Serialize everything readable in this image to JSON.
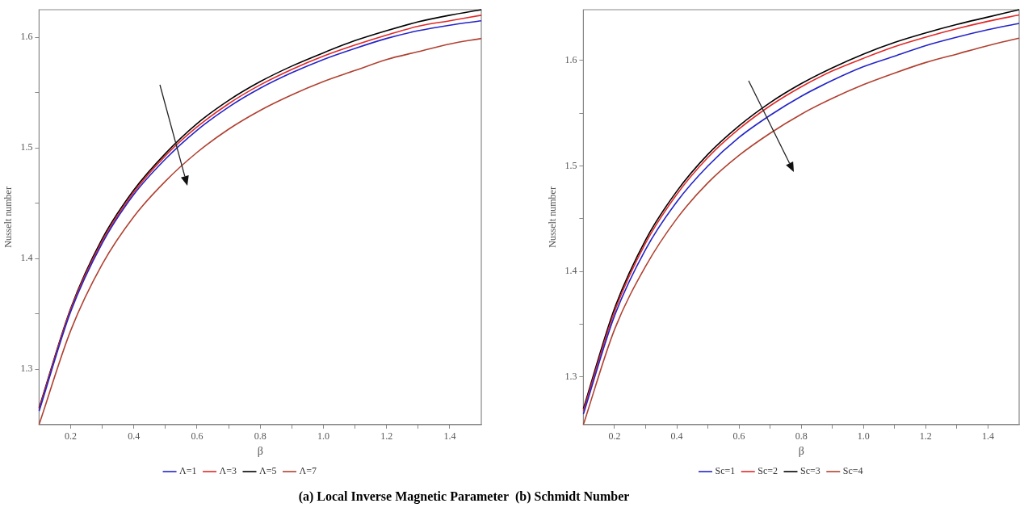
{
  "chart_data": [
    {
      "type": "line",
      "xlabel": "β",
      "ylabel": "Nusselt number",
      "legend": "bottom",
      "marker": "none",
      "line_style": "solid",
      "grid": false,
      "x": [
        0.1,
        0.2,
        0.3,
        0.4,
        0.5,
        0.6,
        0.7,
        0.8,
        0.9,
        1.0,
        1.1,
        1.2,
        1.3,
        1.4,
        1.5
      ],
      "xlim": [
        0.1,
        1.5
      ],
      "ylim": [
        1.25,
        1.625
      ],
      "xticks": [
        {
          "value": 0.2,
          "label": "0.2"
        },
        {
          "value": 0.3,
          "label": null
        },
        {
          "value": 0.4,
          "label": "0.4"
        },
        {
          "value": 0.5,
          "label": null
        },
        {
          "value": 0.6,
          "label": "0.6"
        },
        {
          "value": 0.7,
          "label": null
        },
        {
          "value": 0.8,
          "label": "0.8"
        },
        {
          "value": 0.9,
          "label": null
        },
        {
          "value": 1,
          "label": "1.0"
        },
        {
          "value": 1.1,
          "label": null
        },
        {
          "value": 1.2,
          "label": "1.2"
        },
        {
          "value": 1.3,
          "label": null
        },
        {
          "value": 1.4,
          "label": "1.4"
        }
      ],
      "yticks": [
        1.3,
        {
          "value": 1.35,
          "label": null
        },
        1.4,
        {
          "value": 1.45,
          "label": null
        },
        1.5,
        {
          "value": 1.55,
          "label": null
        },
        1.6
      ],
      "series": [
        {
          "name": "Λ=1",
          "color": "#2323c8",
          "values": [
            1.262,
            1.352,
            1.414,
            1.458,
            1.49,
            1.516,
            1.537,
            1.554,
            1.568,
            1.58,
            1.59,
            1.599,
            1.606,
            1.611,
            1.615
          ]
        },
        {
          "name": "Λ=3",
          "color": "#e02828",
          "values": [
            1.264,
            1.354,
            1.416,
            1.46,
            1.493,
            1.519,
            1.54,
            1.557,
            1.571,
            1.583,
            1.593,
            1.602,
            1.61,
            1.615,
            1.62
          ]
        },
        {
          "name": "Λ=5",
          "color": "#000000",
          "values": [
            1.265,
            1.355,
            1.418,
            1.462,
            1.495,
            1.522,
            1.543,
            1.56,
            1.574,
            1.586,
            1.597,
            1.606,
            1.614,
            1.62,
            1.625
          ]
        },
        {
          "name": "Λ=7",
          "color": "#b04030",
          "values": [
            1.25,
            1.335,
            1.395,
            1.438,
            1.47,
            1.496,
            1.517,
            1.534,
            1.548,
            1.56,
            1.57,
            1.58,
            1.587,
            1.594,
            1.599
          ]
        }
      ],
      "annotations": [
        "(a) Local Inverse Magnetic Parameter"
      ]
    },
    {
      "type": "line",
      "xlabel": "β",
      "ylabel": "Nusselt number",
      "legend": "bottom",
      "marker": "none",
      "line_style": "solid",
      "grid": false,
      "x": [
        0.1,
        0.2,
        0.3,
        0.4,
        0.5,
        0.6,
        0.7,
        0.8,
        0.9,
        1.0,
        1.1,
        1.2,
        1.3,
        1.4,
        1.5
      ],
      "xlim": [
        0.1,
        1.5
      ],
      "ylim": [
        1.255,
        1.648
      ],
      "xticks": [
        {
          "value": 0.2,
          "label": "0.2"
        },
        {
          "value": 0.3,
          "label": null
        },
        {
          "value": 0.4,
          "label": "0.4"
        },
        {
          "value": 0.5,
          "label": null
        },
        {
          "value": 0.6,
          "label": "0.6"
        },
        {
          "value": 0.7,
          "label": null
        },
        {
          "value": 0.8,
          "label": "0.8"
        },
        {
          "value": 0.9,
          "label": null
        },
        {
          "value": 1,
          "label": "1.0"
        },
        {
          "value": 1.1,
          "label": null
        },
        {
          "value": 1.2,
          "label": "1.2"
        },
        {
          "value": 1.3,
          "label": null
        },
        {
          "value": 1.4,
          "label": "1.4"
        }
      ],
      "yticks": [
        1.3,
        {
          "value": 1.35,
          "label": null
        },
        1.4,
        {
          "value": 1.45,
          "label": null
        },
        1.5,
        {
          "value": 1.55,
          "label": null
        },
        1.6
      ],
      "series": [
        {
          "name": "Sc=1",
          "color": "#2323c8",
          "values": [
            1.265,
            1.358,
            1.421,
            1.466,
            1.5,
            1.527,
            1.548,
            1.566,
            1.581,
            1.594,
            1.604,
            1.614,
            1.622,
            1.629,
            1.635
          ]
        },
        {
          "name": "Sc=2",
          "color": "#e02828",
          "values": [
            1.268,
            1.362,
            1.427,
            1.473,
            1.508,
            1.535,
            1.557,
            1.575,
            1.59,
            1.602,
            1.613,
            1.622,
            1.63,
            1.637,
            1.643
          ]
        },
        {
          "name": "Sc=3",
          "color": "#000000",
          "values": [
            1.27,
            1.365,
            1.43,
            1.476,
            1.511,
            1.538,
            1.56,
            1.578,
            1.593,
            1.606,
            1.617,
            1.626,
            1.634,
            1.641,
            1.648
          ]
        },
        {
          "name": "Sc=4",
          "color": "#b04030",
          "values": [
            1.255,
            1.345,
            1.405,
            1.45,
            1.484,
            1.51,
            1.531,
            1.549,
            1.564,
            1.577,
            1.588,
            1.598,
            1.606,
            1.614,
            1.621
          ]
        }
      ],
      "annotations": [
        "(b) Schmidt Number"
      ]
    }
  ]
}
